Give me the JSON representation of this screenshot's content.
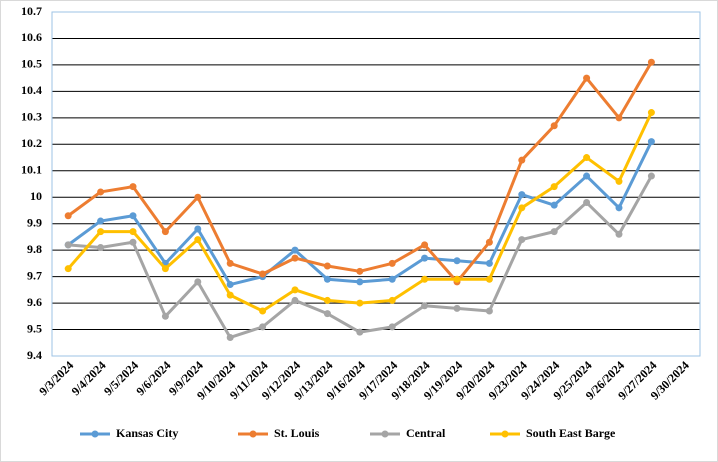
{
  "chart_data": {
    "type": "line",
    "categories": [
      "9/3/2024",
      "9/4/2024",
      "9/5/2024",
      "9/6/2024",
      "9/9/2024",
      "9/10/2024",
      "9/11/2024",
      "9/12/2024",
      "9/13/2024",
      "9/16/2024",
      "9/17/2024",
      "9/18/2024",
      "9/19/2024",
      "9/20/2024",
      "9/23/2024",
      "9/24/2024",
      "9/25/2024",
      "9/26/2024",
      "9/27/2024",
      "9/30/2024"
    ],
    "series": [
      {
        "name": "Kansas City",
        "color": "#5b9bd5",
        "values": [
          9.82,
          9.91,
          9.93,
          9.75,
          9.88,
          9.67,
          9.7,
          9.8,
          9.69,
          9.68,
          9.69,
          9.77,
          9.76,
          9.75,
          10.01,
          9.97,
          10.08,
          9.96,
          10.21,
          null
        ]
      },
      {
        "name": "St. Louis",
        "color": "#ed7d31",
        "values": [
          9.93,
          10.02,
          10.04,
          9.87,
          10.0,
          9.75,
          9.71,
          9.77,
          9.74,
          9.72,
          9.75,
          9.82,
          9.68,
          9.83,
          10.14,
          10.27,
          10.45,
          10.3,
          10.51,
          null
        ]
      },
      {
        "name": "Central",
        "color": "#a5a5a5",
        "values": [
          9.82,
          9.81,
          9.83,
          9.55,
          9.68,
          9.47,
          9.51,
          9.61,
          9.56,
          9.49,
          9.51,
          9.59,
          9.58,
          9.57,
          9.84,
          9.87,
          9.98,
          9.86,
          10.08,
          null
        ]
      },
      {
        "name": "South East Barge",
        "color": "#ffc000",
        "values": [
          9.73,
          9.87,
          9.87,
          9.73,
          9.84,
          9.63,
          9.57,
          9.65,
          9.61,
          9.6,
          9.61,
          9.69,
          9.69,
          9.69,
          9.96,
          10.04,
          10.15,
          10.06,
          10.32,
          null
        ]
      }
    ],
    "ylim": [
      9.4,
      10.7
    ],
    "yticks": [
      9.4,
      9.5,
      9.6,
      9.7,
      9.8,
      9.9,
      10,
      10.1,
      10.2,
      10.3,
      10.4,
      10.5,
      10.6,
      10.7
    ],
    "grid": true,
    "legend": "bottom"
  }
}
